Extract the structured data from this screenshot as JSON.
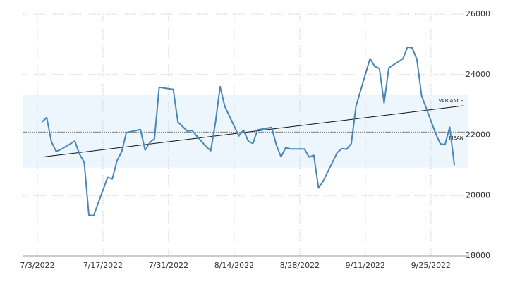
{
  "chart_data": {
    "type": "line",
    "x": [
      "2022-07-04",
      "2022-07-05",
      "2022-07-06",
      "2022-07-07",
      "2022-07-08",
      "2022-07-11",
      "2022-07-12",
      "2022-07-13",
      "2022-07-14",
      "2022-07-15",
      "2022-07-18",
      "2022-07-19",
      "2022-07-20",
      "2022-07-21",
      "2022-07-22",
      "2022-07-25",
      "2022-07-26",
      "2022-07-27",
      "2022-07-28",
      "2022-07-29",
      "2022-08-01",
      "2022-08-02",
      "2022-08-03",
      "2022-08-04",
      "2022-08-05",
      "2022-08-08",
      "2022-08-09",
      "2022-08-10",
      "2022-08-11",
      "2022-08-12",
      "2022-08-15",
      "2022-08-16",
      "2022-08-17",
      "2022-08-18",
      "2022-08-19",
      "2022-08-22",
      "2022-08-23",
      "2022-08-24",
      "2022-08-25",
      "2022-08-26",
      "2022-08-29",
      "2022-08-30",
      "2022-08-31",
      "2022-09-01",
      "2022-09-02",
      "2022-09-05",
      "2022-09-06",
      "2022-09-07",
      "2022-09-08",
      "2022-09-09",
      "2022-09-12",
      "2022-09-13",
      "2022-09-14",
      "2022-09-15",
      "2022-09-16",
      "2022-09-19",
      "2022-09-20",
      "2022-09-21",
      "2022-09-22",
      "2022-09-23",
      "2022-09-26",
      "2022-09-27",
      "2022-09-28",
      "2022-09-29",
      "2022-09-30"
    ],
    "series": [
      {
        "color": "#4a86b5",
        "values": [
          22430,
          22580,
          21780,
          21460,
          21520,
          21800,
          21370,
          21100,
          19350,
          19330,
          20600,
          20550,
          21150,
          21450,
          22080,
          22180,
          21500,
          21750,
          21880,
          23580,
          23510,
          22430,
          22280,
          22130,
          22150,
          21620,
          21480,
          22400,
          23600,
          22950,
          21970,
          22160,
          21800,
          21720,
          22170,
          22250,
          21670,
          21280,
          21580,
          21540,
          21540,
          21270,
          21330,
          20250,
          20470,
          21420,
          21550,
          21530,
          21720,
          22950,
          24530,
          24270,
          24200,
          23060,
          24220,
          24520,
          24910,
          24880,
          24500,
          23300,
          22050,
          21710,
          21680,
          22260,
          21000
        ]
      }
    ],
    "trend": {
      "x": [
        "2022-07-04",
        "2022-10-02"
      ],
      "values": [
        21270,
        22970
      ]
    },
    "mean": {
      "label": "MEAN",
      "value": 22100
    },
    "variance": {
      "label": "VARIANCE",
      "range": [
        20920,
        23320
      ]
    },
    "xlim": [
      "2022-06-30",
      "2022-10-03"
    ],
    "xticks": [
      {
        "value": "2022-07-03",
        "label": "7/3/2022"
      },
      {
        "value": "2022-07-17",
        "label": "7/17/2022"
      },
      {
        "value": "2022-07-31",
        "label": "7/31/2022"
      },
      {
        "value": "2022-08-14",
        "label": "8/14/2022"
      },
      {
        "value": "2022-08-28",
        "label": "8/28/2022"
      },
      {
        "value": "2022-09-11",
        "label": "9/11/2022"
      },
      {
        "value": "2022-09-25",
        "label": "9/25/2022"
      }
    ],
    "ylim": [
      18000,
      26000
    ],
    "yticks": [
      18000,
      20000,
      22000,
      24000,
      26000
    ],
    "grid": true
  }
}
